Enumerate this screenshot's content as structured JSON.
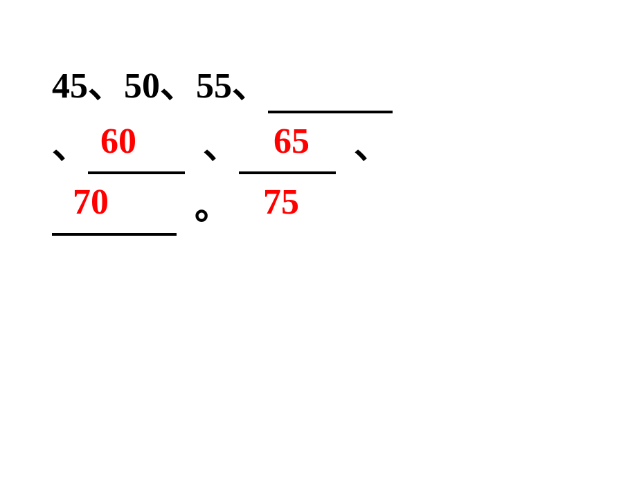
{
  "exercise": {
    "type": "number-sequence-fill-blank",
    "sequence_step": 5,
    "line1": {
      "n1": "45",
      "n2": "50",
      "n3": "55",
      "sep": "、"
    },
    "line2": {
      "answer1": "60",
      "answer2": "65",
      "sep_start": "、",
      "sep_mid": "、",
      "sep_end": "、"
    },
    "line3": {
      "answer3": "70",
      "answer4": "75",
      "period": "。"
    },
    "colors": {
      "black": "#000000",
      "red": "#ff0000",
      "background": "#ffffff"
    },
    "font": {
      "size_pt": 52,
      "weight": "bold",
      "family": "SimSun"
    }
  }
}
